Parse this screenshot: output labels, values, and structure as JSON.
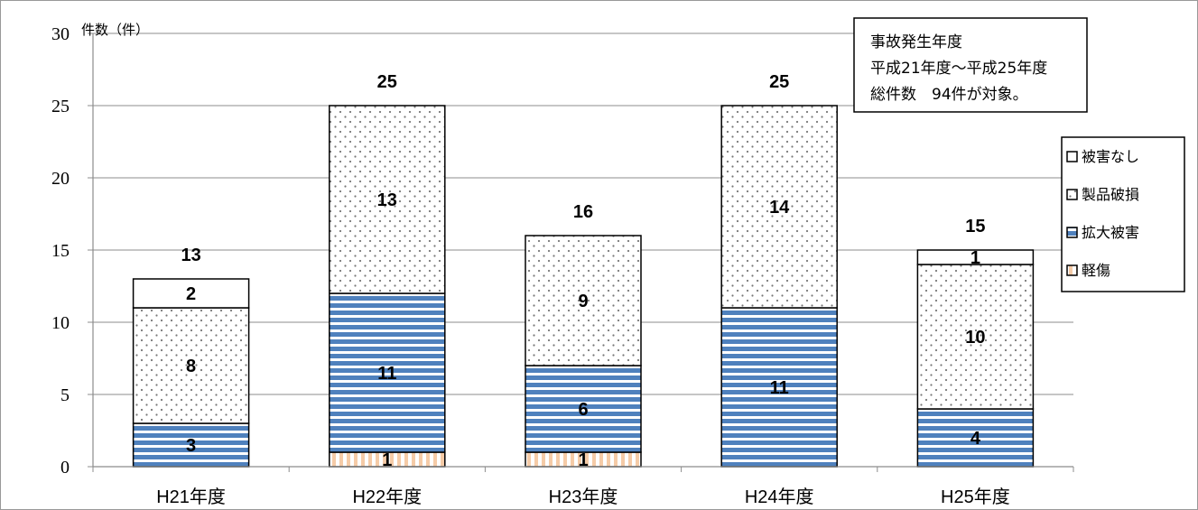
{
  "chart_data": {
    "type": "bar",
    "stacked": true,
    "ylabel": "件数（件）",
    "ylim": [
      0,
      30
    ],
    "yticks": [
      "0",
      "5",
      "10",
      "15",
      "20",
      "25",
      "30"
    ],
    "grid": true,
    "legend_position": "right",
    "categories": [
      "H21年度",
      "H22年度",
      "H23年度",
      "H24年度",
      "H25年度"
    ],
    "series": [
      {
        "name": "軽傷",
        "values": [
          0,
          1,
          1,
          0,
          0
        ],
        "pattern": "vertical-stripes",
        "color": "#F5CBA7"
      },
      {
        "name": "拡大被害",
        "values": [
          3,
          11,
          6,
          11,
          4
        ],
        "pattern": "horizontal-stripes",
        "color": "#4F81BD"
      },
      {
        "name": "製品破損",
        "values": [
          8,
          13,
          9,
          14,
          10
        ],
        "pattern": "dots",
        "color": "#777777"
      },
      {
        "name": "被害なし",
        "values": [
          2,
          0,
          0,
          0,
          1
        ],
        "pattern": "blank",
        "color": "#FFFFFF"
      }
    ],
    "totals": [
      "13",
      "25",
      "16",
      "25",
      "15"
    ],
    "annotation": [
      "事故発生年度",
      "平成21年度〜平成25年度",
      "総件数　94件が対象。"
    ],
    "legend_order": [
      "被害なし",
      "製品破損",
      "拡大被害",
      "軽傷"
    ]
  }
}
